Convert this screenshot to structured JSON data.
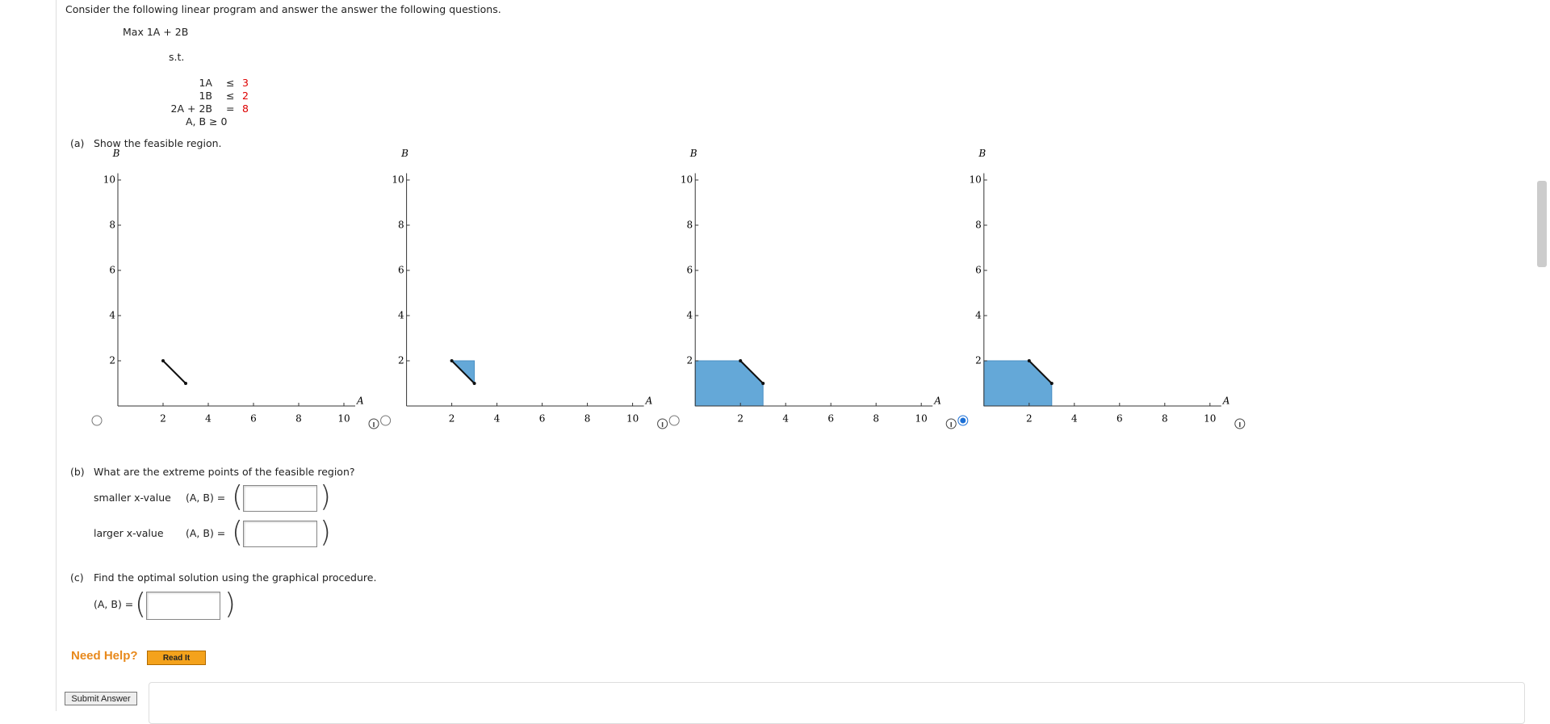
{
  "intro": "Consider the following linear program and answer the answer the following questions.",
  "objective": "Max 1A + 2B",
  "st": "s.t.",
  "constraints": [
    {
      "lhs": "1A",
      "op": "≤",
      "rhs": "3"
    },
    {
      "lhs": "1B",
      "op": "≤",
      "rhs": "2"
    },
    {
      "lhs": "2A + 2B",
      "op": "=",
      "rhs": "8"
    }
  ],
  "nonneg": "A, B ≥ 0",
  "part_a": {
    "label": "(a)",
    "question": "Show the feasible region.",
    "graphs": {
      "x_label": "A",
      "y_label": "B",
      "xlim": [
        0,
        10.5
      ],
      "ylim": [
        0,
        10.3
      ],
      "xticks": [
        2,
        4,
        6,
        8,
        10
      ],
      "yticks": [
        2,
        4,
        6,
        8,
        10
      ],
      "selected": 3,
      "options": [
        {
          "segment": [
            [
              2,
              2
            ],
            [
              3,
              1
            ]
          ],
          "region": null
        },
        {
          "segment": [
            [
              2,
              2
            ],
            [
              3,
              1
            ]
          ],
          "region": [
            [
              2,
              2
            ],
            [
              3,
              2
            ],
            [
              3,
              1
            ]
          ]
        },
        {
          "segment": [
            [
              2,
              2
            ],
            [
              3,
              1
            ]
          ],
          "region": [
            [
              0,
              0
            ],
            [
              0,
              2
            ],
            [
              2,
              2
            ],
            [
              3,
              1
            ],
            [
              3,
              0
            ]
          ]
        },
        {
          "segment": [
            [
              2,
              2
            ],
            [
              3,
              1
            ]
          ],
          "region": [
            [
              0,
              0
            ],
            [
              0,
              2
            ],
            [
              2,
              2
            ],
            [
              3,
              1
            ],
            [
              3,
              0
            ]
          ]
        }
      ]
    }
  },
  "part_b": {
    "label": "(b)",
    "question": "What are the extreme points of the feasible region?",
    "rows": [
      {
        "label": "smaller x-value",
        "eq": "(A, B) ="
      },
      {
        "label": "larger x-value",
        "eq": "(A, B) ="
      }
    ]
  },
  "part_c": {
    "label": "(c)",
    "question": "Find the optimal solution using the graphical procedure.",
    "eq": "(A, B) ="
  },
  "help": {
    "label": "Need Help?",
    "button": "Read It"
  },
  "submit": "Submit Answer"
}
